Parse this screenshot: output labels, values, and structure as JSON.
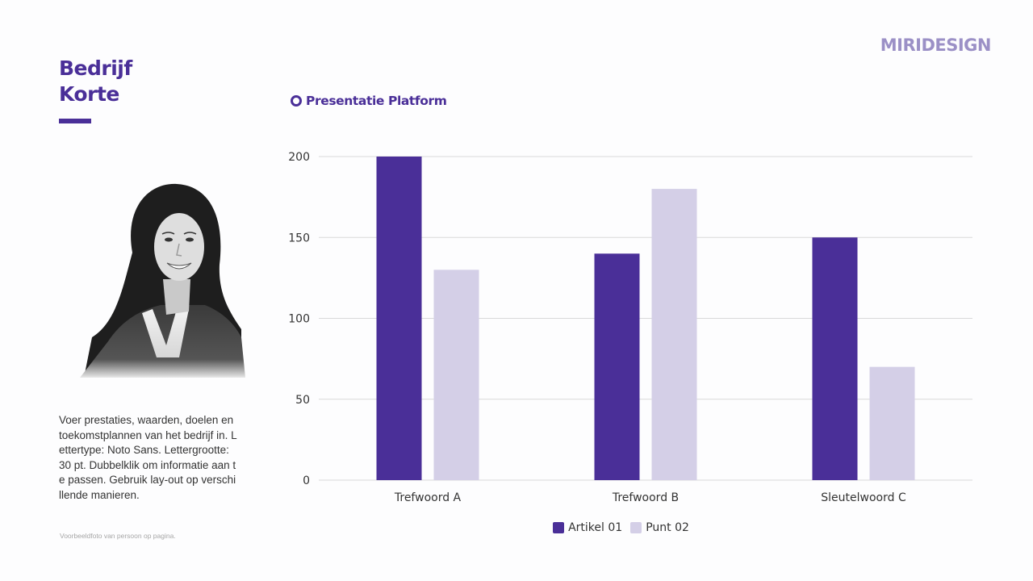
{
  "brand": {
    "logo_text": "MIRIDESIGN"
  },
  "header": {
    "title_lines": [
      "Bedrijf",
      "Korte"
    ]
  },
  "profile": {
    "description": "Voer prestaties, waarden, doelen en toekomstplannen van het bedrijf in. Lettertype: Noto Sans. Lettergrootte: 30 pt. Dubbelklik om informatie aan te passen. Gebruik lay-out op verschillende manieren.",
    "caption": "Voorbeeldfoto van persoon op pagina."
  },
  "chart_heading": "Presentatie Platform",
  "colors": {
    "accent": "#4a2f98",
    "series_1": "#4a2f98",
    "series_2": "#d4cfe7",
    "logo": "#9b90c6",
    "grid": "#d9d9d9"
  },
  "chart_data": {
    "type": "bar",
    "title": "Presentatie Platform",
    "categories": [
      "Trefwoord A",
      "Trefwoord B",
      "Sleutelwoord C"
    ],
    "series": [
      {
        "name": "Artikel 01",
        "values": [
          200,
          140,
          150
        ]
      },
      {
        "name": "Punt 02",
        "values": [
          130,
          180,
          70
        ]
      }
    ],
    "ylim": [
      0,
      200
    ],
    "yticks": [
      0,
      50,
      100,
      150,
      200
    ],
    "grid": true,
    "legend_position": "bottom"
  }
}
